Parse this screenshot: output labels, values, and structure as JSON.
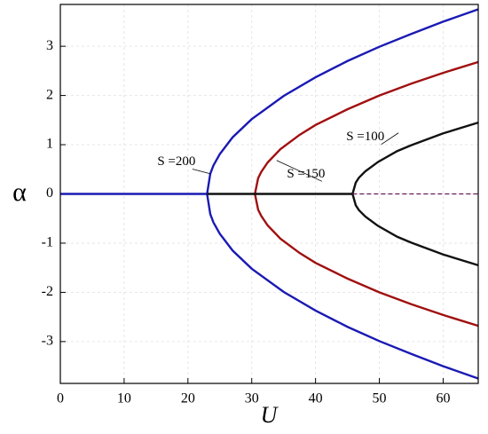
{
  "chart_data": {
    "type": "line",
    "x_label": "U",
    "y_label": "α",
    "xlim": [
      0,
      65.5
    ],
    "ylim": [
      -3.85,
      3.85
    ],
    "xticks": [
      0,
      10,
      20,
      30,
      40,
      50,
      60
    ],
    "yticks": [
      -3,
      -2,
      -1,
      0,
      1,
      2,
      3
    ],
    "grid": true,
    "series": [
      {
        "color": "#1a1ab4",
        "x": [
          23,
          23.5,
          24,
          25,
          27,
          30,
          35,
          40,
          45,
          50,
          55,
          60,
          65.5
        ],
        "values": [
          0,
          0.41,
          0.58,
          0.81,
          1.15,
          1.52,
          1.99,
          2.37,
          2.7,
          2.99,
          3.25,
          3.5,
          3.75
        ]
      },
      {
        "color": "#1a1ab4",
        "x": [
          23,
          23.5,
          24,
          25,
          27,
          30,
          35,
          40,
          45,
          50,
          55,
          60,
          65.5
        ],
        "values": [
          0,
          -0.41,
          -0.58,
          -0.81,
          -1.15,
          -1.52,
          -1.99,
          -2.37,
          -2.7,
          -2.99,
          -3.25,
          -3.5,
          -3.75
        ]
      },
      {
        "color": "#a01010",
        "x": [
          30.5,
          31,
          31.5,
          32.5,
          34.5,
          37.5,
          40,
          45,
          50,
          55,
          60,
          65.5
        ],
        "values": [
          0,
          0.32,
          0.45,
          0.64,
          0.91,
          1.2,
          1.4,
          1.72,
          2.0,
          2.24,
          2.46,
          2.68
        ]
      },
      {
        "color": "#a01010",
        "x": [
          30.5,
          31,
          31.5,
          32.5,
          34.5,
          37.5,
          40,
          45,
          50,
          55,
          60,
          65.5
        ],
        "values": [
          0,
          -0.32,
          -0.45,
          -0.64,
          -0.91,
          -1.2,
          -1.4,
          -1.72,
          -2.0,
          -2.24,
          -2.46,
          -2.68
        ]
      },
      {
        "color": "#111111",
        "x": [
          45.8,
          46.3,
          46.8,
          47.8,
          49.8,
          52.8,
          55,
          60,
          65.5
        ],
        "values": [
          0,
          0.23,
          0.33,
          0.46,
          0.65,
          0.87,
          0.99,
          1.23,
          1.45
        ]
      },
      {
        "color": "#111111",
        "x": [
          45.8,
          46.3,
          46.8,
          47.8,
          49.8,
          52.8,
          55,
          60,
          65.5
        ],
        "values": [
          0,
          -0.23,
          -0.33,
          -0.46,
          -0.65,
          -0.87,
          -0.99,
          -1.23,
          -1.45
        ]
      },
      {
        "color": "#1a1ab4",
        "x": [
          0,
          23
        ],
        "values": [
          0,
          0
        ]
      },
      {
        "color": "#111111",
        "x": [
          23,
          45.8
        ],
        "values": [
          0,
          0
        ]
      },
      {
        "color": "#6a1a5a",
        "dashed": true,
        "x": [
          45.8,
          65.5
        ],
        "values": [
          0,
          0
        ]
      }
    ],
    "annotations": [
      {
        "text": "S =200",
        "x": 18.2,
        "y": 0.65,
        "point": [
          23.5,
          0.41
        ]
      },
      {
        "text": "S =150",
        "x": 38.5,
        "y": 0.4,
        "point": [
          33.9,
          0.68
        ]
      },
      {
        "text": "S =100",
        "x": 47.8,
        "y": 1.15,
        "point": [
          53,
          1.24
        ]
      }
    ]
  }
}
